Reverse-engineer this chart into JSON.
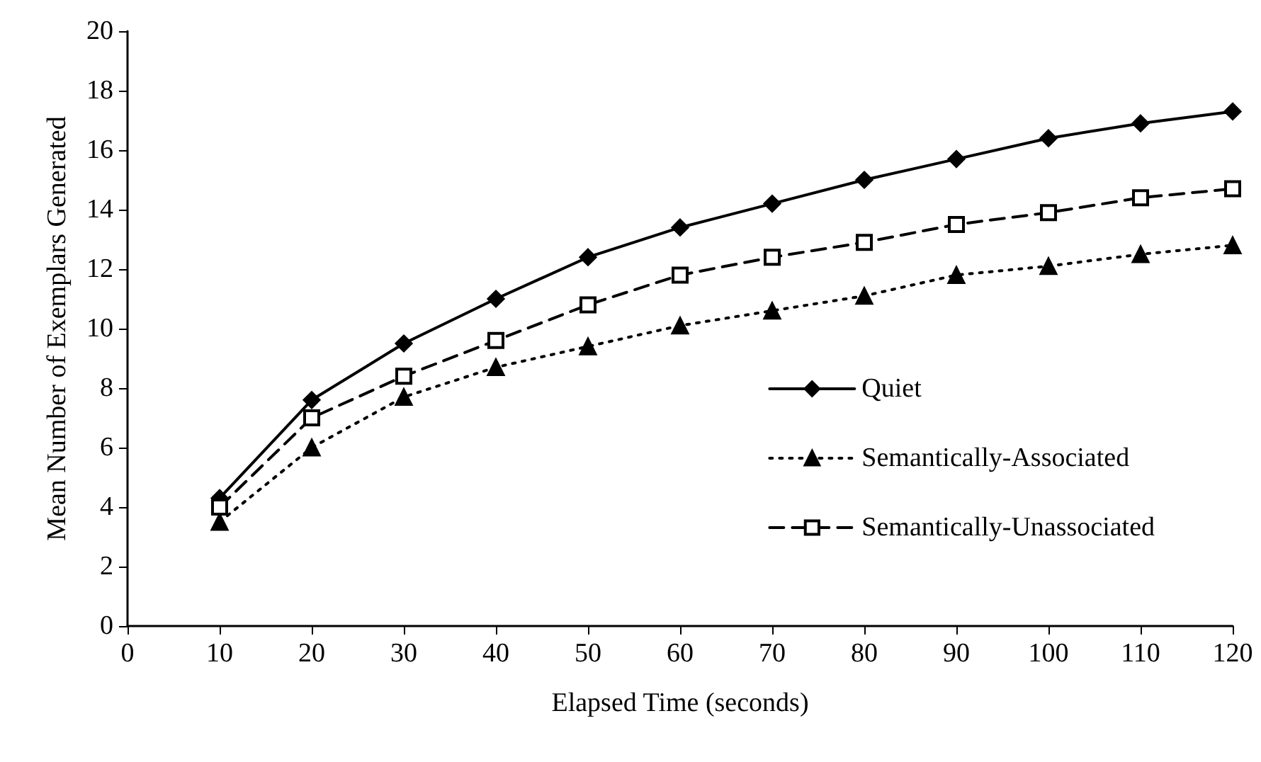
{
  "chart_data": {
    "type": "line",
    "xlabel": "Elapsed Time (seconds)",
    "ylabel": "Mean Number of Exemplars Generated",
    "x": [
      10,
      20,
      30,
      40,
      50,
      60,
      70,
      80,
      90,
      100,
      110,
      120
    ],
    "series": [
      {
        "name": "Quiet",
        "color": "#000000",
        "marker": "diamond",
        "line_style": "solid",
        "values": [
          4.3,
          7.6,
          9.5,
          11.0,
          12.4,
          13.4,
          14.2,
          15.0,
          15.7,
          16.4,
          16.9,
          17.3
        ]
      },
      {
        "name": "Semantically-Associated",
        "color": "#000000",
        "marker": "triangle",
        "line_style": "dotted",
        "values": [
          3.5,
          6.0,
          7.7,
          8.7,
          9.4,
          10.1,
          10.6,
          11.1,
          11.8,
          12.1,
          12.5,
          12.8
        ]
      },
      {
        "name": "Semantically-Unassociated",
        "color": "#000000",
        "marker": "square",
        "line_style": "dashed",
        "values": [
          4.0,
          7.0,
          8.4,
          9.6,
          10.8,
          11.8,
          12.4,
          12.9,
          13.5,
          13.9,
          14.4,
          14.7
        ]
      }
    ],
    "xlim": [
      0,
      120
    ],
    "xticks": [
      0,
      10,
      20,
      30,
      40,
      50,
      60,
      70,
      80,
      90,
      100,
      110,
      120
    ],
    "ylim": [
      0,
      20
    ],
    "yticks": [
      0,
      2,
      4,
      6,
      8,
      10,
      12,
      14,
      16,
      18,
      20
    ],
    "grid": false,
    "legend": "right"
  }
}
